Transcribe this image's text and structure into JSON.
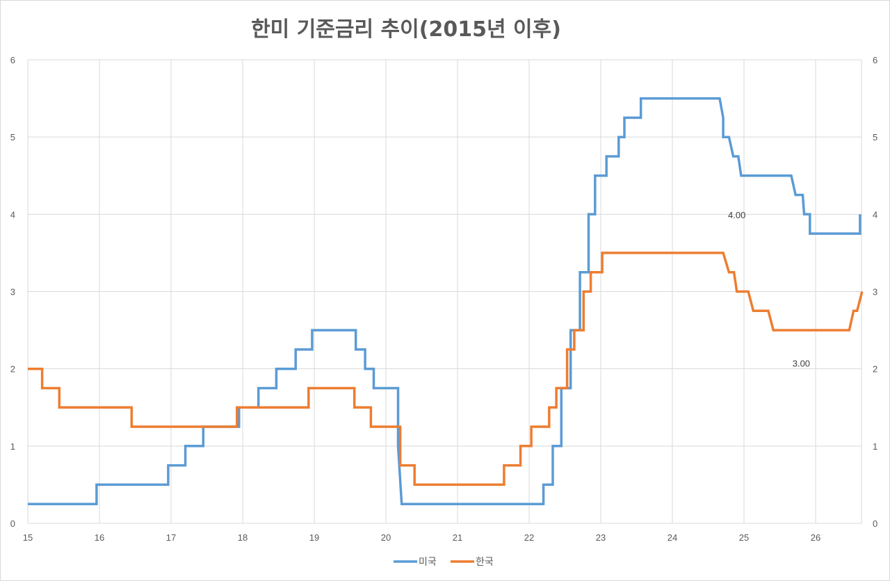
{
  "chart_data": {
    "type": "line",
    "title": "한미 기준금리 추이(2015년 이후)",
    "xlabel": "",
    "ylabel": "",
    "xlim": [
      15,
      26.65
    ],
    "ylim": [
      0,
      6
    ],
    "x_ticks": [
      "15",
      "16",
      "17",
      "18",
      "19",
      "20",
      "21",
      "22",
      "23",
      "24",
      "25",
      "26"
    ],
    "y_ticks": [
      "0",
      "1",
      "2",
      "3",
      "4",
      "5",
      "6"
    ],
    "grid": true,
    "legend_position": "bottom",
    "step_style": true,
    "series": [
      {
        "name": "미국",
        "color": "#5b9bd5",
        "points": [
          [
            15.0,
            0.25
          ],
          [
            15.96,
            0.25
          ],
          [
            15.96,
            0.5
          ],
          [
            16.96,
            0.5
          ],
          [
            16.96,
            0.75
          ],
          [
            17.2,
            0.75
          ],
          [
            17.2,
            1.0
          ],
          [
            17.45,
            1.0
          ],
          [
            17.45,
            1.25
          ],
          [
            17.95,
            1.25
          ],
          [
            17.95,
            1.5
          ],
          [
            18.22,
            1.5
          ],
          [
            18.22,
            1.75
          ],
          [
            18.47,
            1.75
          ],
          [
            18.47,
            2.0
          ],
          [
            18.74,
            2.0
          ],
          [
            18.74,
            2.25
          ],
          [
            18.97,
            2.25
          ],
          [
            18.97,
            2.5
          ],
          [
            19.58,
            2.5
          ],
          [
            19.58,
            2.25
          ],
          [
            19.71,
            2.25
          ],
          [
            19.71,
            2.0
          ],
          [
            19.83,
            2.0
          ],
          [
            19.83,
            1.75
          ],
          [
            20.17,
            1.75
          ],
          [
            20.17,
            1.0
          ],
          [
            20.22,
            0.25
          ],
          [
            22.2,
            0.25
          ],
          [
            22.2,
            0.5
          ],
          [
            22.33,
            0.5
          ],
          [
            22.33,
            1.0
          ],
          [
            22.45,
            1.0
          ],
          [
            22.45,
            1.75
          ],
          [
            22.58,
            1.75
          ],
          [
            22.58,
            2.5
          ],
          [
            22.71,
            2.5
          ],
          [
            22.71,
            3.25
          ],
          [
            22.83,
            3.25
          ],
          [
            22.83,
            4.0
          ],
          [
            22.92,
            4.0
          ],
          [
            22.92,
            4.5
          ],
          [
            23.08,
            4.5
          ],
          [
            23.08,
            4.75
          ],
          [
            23.25,
            4.75
          ],
          [
            23.25,
            5.0
          ],
          [
            23.33,
            5.0
          ],
          [
            23.33,
            5.25
          ],
          [
            23.56,
            5.25
          ],
          [
            23.56,
            5.5
          ],
          [
            24.66,
            5.5
          ],
          [
            24.71,
            5.25
          ],
          [
            24.71,
            5.0
          ],
          [
            24.79,
            5.0
          ],
          [
            24.85,
            4.75
          ],
          [
            24.92,
            4.75
          ],
          [
            24.96,
            4.5
          ],
          [
            25.66,
            4.5
          ],
          [
            25.72,
            4.25
          ],
          [
            25.82,
            4.25
          ],
          [
            25.84,
            4.0
          ],
          [
            25.92,
            4.0
          ],
          [
            25.92,
            3.75
          ],
          [
            26.62,
            3.75
          ],
          [
            26.62,
            4.0
          ]
        ]
      },
      {
        "name": "한국",
        "color": "#ed7d31",
        "points": [
          [
            15.0,
            2.0
          ],
          [
            15.2,
            2.0
          ],
          [
            15.2,
            1.75
          ],
          [
            15.44,
            1.75
          ],
          [
            15.44,
            1.5
          ],
          [
            16.45,
            1.5
          ],
          [
            16.45,
            1.25
          ],
          [
            17.92,
            1.25
          ],
          [
            17.92,
            1.5
          ],
          [
            18.92,
            1.5
          ],
          [
            18.92,
            1.75
          ],
          [
            19.56,
            1.75
          ],
          [
            19.56,
            1.5
          ],
          [
            19.79,
            1.5
          ],
          [
            19.79,
            1.25
          ],
          [
            20.2,
            1.25
          ],
          [
            20.2,
            0.75
          ],
          [
            20.4,
            0.75
          ],
          [
            20.4,
            0.5
          ],
          [
            21.65,
            0.5
          ],
          [
            21.65,
            0.75
          ],
          [
            21.88,
            0.75
          ],
          [
            21.88,
            1.0
          ],
          [
            22.03,
            1.0
          ],
          [
            22.03,
            1.25
          ],
          [
            22.28,
            1.25
          ],
          [
            22.28,
            1.5
          ],
          [
            22.38,
            1.5
          ],
          [
            22.38,
            1.75
          ],
          [
            22.53,
            1.75
          ],
          [
            22.53,
            2.25
          ],
          [
            22.63,
            2.25
          ],
          [
            22.63,
            2.5
          ],
          [
            22.76,
            2.5
          ],
          [
            22.76,
            3.0
          ],
          [
            22.86,
            3.0
          ],
          [
            22.86,
            3.25
          ],
          [
            23.02,
            3.25
          ],
          [
            23.02,
            3.5
          ],
          [
            24.71,
            3.5
          ],
          [
            24.79,
            3.25
          ],
          [
            24.86,
            3.25
          ],
          [
            24.9,
            3.0
          ],
          [
            25.06,
            3.0
          ],
          [
            25.13,
            2.75
          ],
          [
            25.34,
            2.75
          ],
          [
            25.41,
            2.5
          ],
          [
            26.47,
            2.5
          ],
          [
            26.53,
            2.75
          ],
          [
            26.58,
            2.75
          ],
          [
            26.65,
            3.0
          ]
        ]
      }
    ],
    "annotations": [
      {
        "text": "4.00",
        "x": 24.9,
        "y": 3.95
      },
      {
        "text": "3.00",
        "x": 25.8,
        "y": 2.03
      }
    ]
  }
}
